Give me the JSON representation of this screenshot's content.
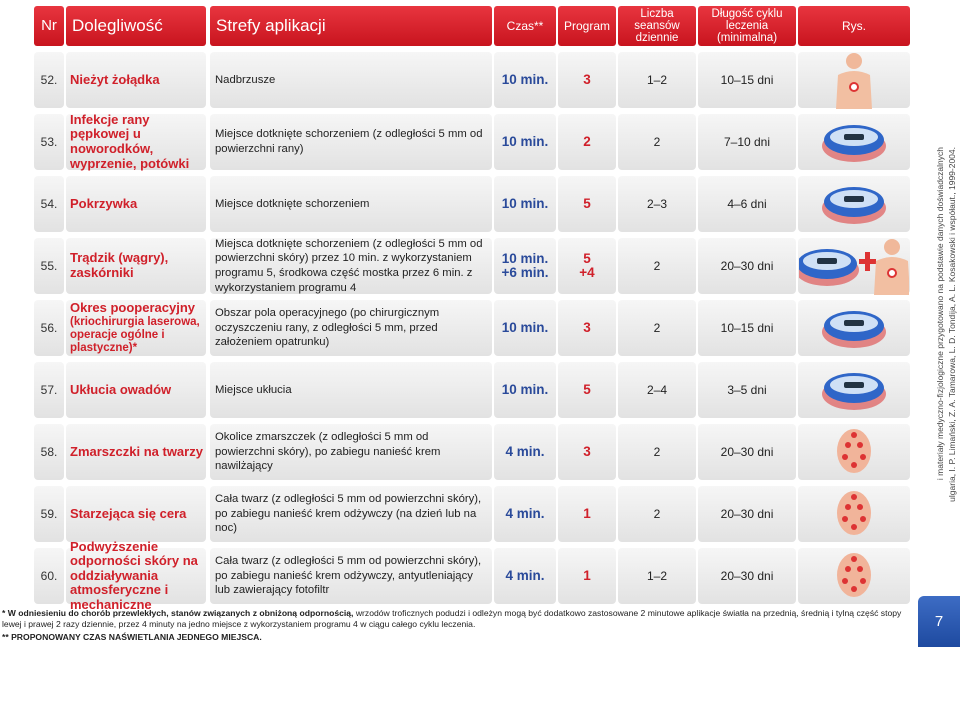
{
  "header": {
    "nr": "Nr",
    "dolegliwosc": "Dolegliwość",
    "strefy": "Strefy aplikacji",
    "czas": "Czas**",
    "program": "Program",
    "liczba": "Liczba seansów dziennie",
    "dlugosc": "Długość cyklu leczenia (minimalna)",
    "rys": "Rys."
  },
  "rows": [
    {
      "nr": "52.",
      "dolegliwosc": "Nieżyt żołądka",
      "strefy": "Nadbrzusze",
      "czas": [
        "10 min."
      ],
      "program": [
        "3"
      ],
      "liczba": "1–2",
      "dlugosc": "10–15 dni"
    },
    {
      "nr": "53.",
      "dolegliwosc": "Infekcje rany pępkowej u noworodków, wyprzenie, potówki",
      "strefy": "Miejsce dotknięte schorzeniem (z odległości 5 mm od powierzchni rany)",
      "czas": [
        "10 min."
      ],
      "program": [
        "2"
      ],
      "liczba": "2",
      "dlugosc": "7–10 dni"
    },
    {
      "nr": "54.",
      "dolegliwosc": "Pokrzywka",
      "strefy": "Miejsce dotknięte schorzeniem",
      "czas": [
        "10 min."
      ],
      "program": [
        "5"
      ],
      "liczba": "2–3",
      "dlugosc": "4–6 dni"
    },
    {
      "nr": "55.",
      "dolegliwosc": "Trądzik (wągry), zaskórniki",
      "strefy": "Miejsca dotknięte schorzeniem (z odległości 5 mm od powierzchni skóry) przez 10 min. z wykorzystaniem programu 5, środkowa część mostka przez 6 min. z wykorzystaniem programu 4",
      "czas": [
        "10 min.",
        "+6 min."
      ],
      "program": [
        "5",
        "+4"
      ],
      "liczba": "2",
      "dlugosc": "20–30 dni"
    },
    {
      "nr": "56.",
      "dolegliwosc": "Okres pooperacyjny",
      "dolegliwosc_sub": "(kriochirurgia laserowa, operacje ogólne i plastyczne)*",
      "strefy": "Obszar pola operacyjnego (po chirurgicznym oczyszczeniu rany, z odległości 5 mm, przed założeniem opatrunku)",
      "czas": [
        "10 min."
      ],
      "program": [
        "3"
      ],
      "liczba": "2",
      "dlugosc": "10–15 dni"
    },
    {
      "nr": "57.",
      "dolegliwosc": "Ukłucia owadów",
      "strefy": "Miejsce ukłucia",
      "czas": [
        "10 min."
      ],
      "program": [
        "5"
      ],
      "liczba": "2–4",
      "dlugosc": "3–5 dni"
    },
    {
      "nr": "58.",
      "dolegliwosc": "Zmarszczki na twarzy",
      "strefy": "Okolice zmarszczek (z odległości 5 mm od powierzchni skóry), po zabiegu nanieść krem nawilżający",
      "czas": [
        "4 min."
      ],
      "program": [
        "3"
      ],
      "liczba": "2",
      "dlugosc": "20–30 dni"
    },
    {
      "nr": "59.",
      "dolegliwosc": "Starzejąca się cera",
      "strefy": "Cała twarz (z odległości 5 mm od powierzchni skóry), po zabiegu nanieść krem odżywczy (na dzień lub na noc)",
      "czas": [
        "4 min."
      ],
      "program": [
        "1"
      ],
      "liczba": "2",
      "dlugosc": "20–30 dni"
    },
    {
      "nr": "60.",
      "dolegliwosc": "Podwyższenie odporności skóry na oddziaływania atmosferyczne i mechaniczne",
      "strefy": "Cała twarz (z odległości 5 mm od powierzchni skóry), po zabiegu nanieść krem odżywczy, antyutleniający lub zawierający fotofiltr",
      "czas": [
        "4 min."
      ],
      "program": [
        "1"
      ],
      "liczba": "1–2",
      "dlugosc": "20–30 dni"
    }
  ],
  "footnotes": {
    "note1_bold": "* W odniesieniu do chorób przewlekłych, stanów związanych z obniżoną odpornością,",
    "note1_rest": "wrzodów troficznych podudzi i odleżyn mogą być dodatkowo zastosowane 2 minutowe aplikacje światła na przednią, średnią i tylną część stopy lewej i prawej 2 razy dziennie, przez 4 minuty na jedno miejsce z wykorzystaniem programu 4 w ciągu całego cyklu leczenia.",
    "note2": "** PROPONOWANY CZAS NAŚWIETLANIA JEDNEGO MIEJSCA."
  },
  "side": {
    "line1": "i materiały medyczno-fizjologiczne przygotowano na podstawie danych doświadczalnych",
    "line2": "ulgaria, I. P. Limański, Z. A. Tamarowa, L. D. Tondija, A. L. Kosakowski i współaut., 1999-2004."
  },
  "page_number": "7"
}
